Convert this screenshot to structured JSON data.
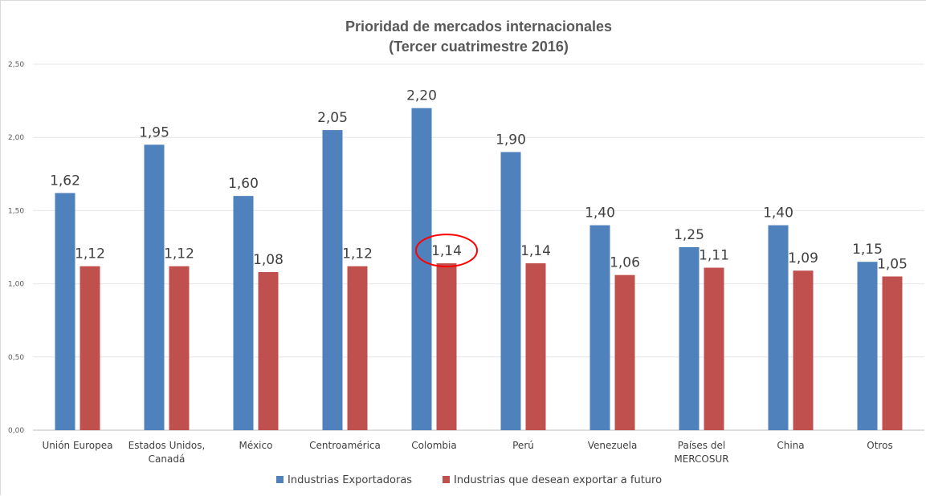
{
  "chart_data": {
    "type": "bar",
    "title": [
      "Prioridad de mercados internacionales",
      "(Tercer cuatrimestre 2016)"
    ],
    "categories": [
      [
        "Unión Europea"
      ],
      [
        "Estados Unidos,",
        "Canadá"
      ],
      [
        "México"
      ],
      [
        "Centroamérica"
      ],
      [
        "Colombia"
      ],
      [
        "Perú"
      ],
      [
        "Venezuela"
      ],
      [
        "Países del",
        "MERCOSUR"
      ],
      [
        "China"
      ],
      [
        "Otros"
      ]
    ],
    "series": [
      {
        "name": "Industrias Exportadoras",
        "color": "#4f81bd",
        "values": [
          1.62,
          1.95,
          1.6,
          2.05,
          2.2,
          1.9,
          1.4,
          1.25,
          1.4,
          1.15
        ],
        "labels": [
          "1,62",
          "1,95",
          "1,60",
          "2,05",
          "2,20",
          "1,90",
          "1,40",
          "1,25",
          "1,40",
          "1,15"
        ]
      },
      {
        "name": "Industrias que desean exportar a futuro",
        "color": "#c0504d",
        "values": [
          1.12,
          1.12,
          1.08,
          1.12,
          1.14,
          1.14,
          1.06,
          1.11,
          1.09,
          1.05
        ],
        "labels": [
          "1,12",
          "1,12",
          "1,08",
          "1,12",
          "1,14",
          "1,14",
          "1,06",
          "1,11",
          "1,09",
          "1,05"
        ]
      }
    ],
    "ylim": [
      0,
      2.5
    ],
    "yticks": [
      0,
      0.5,
      1.0,
      1.5,
      2.0,
      2.5
    ],
    "ytick_labels": [
      "0,00",
      "0,50",
      "1,00",
      "1,50",
      "2,00",
      "2,50"
    ],
    "grid": true,
    "legend_position": "bottom",
    "highlight": {
      "series": 1,
      "category": 4,
      "shape": "ellipse",
      "color": "#ff0000"
    }
  }
}
